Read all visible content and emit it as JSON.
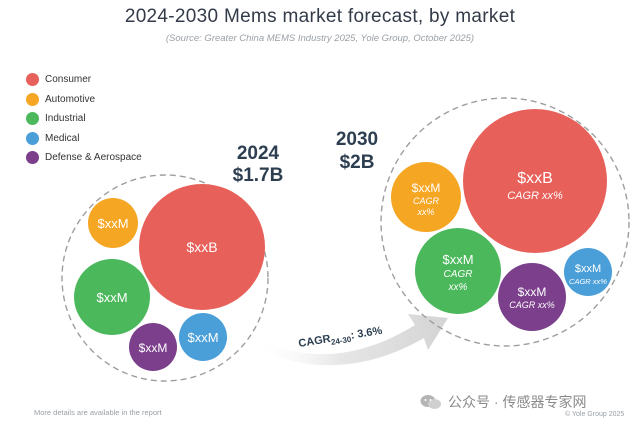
{
  "chart_data": {
    "type": "bubble",
    "title": "2024-2030 Mems market forecast, by market",
    "subtitle": "(Source: Greater China MEMS Industry 2025, Yole Group, October 2025)",
    "legend": [
      {
        "name": "Consumer",
        "color": "#E8605A"
      },
      {
        "name": "Automotive",
        "color": "#F5A623"
      },
      {
        "name": "Industrial",
        "color": "#4CB85C"
      },
      {
        "name": "Medical",
        "color": "#4A9FD8"
      },
      {
        "name": "Defense & Aerospace",
        "color": "#7B3F8C"
      }
    ],
    "years": [
      {
        "year": "2024",
        "total": "$1.7B",
        "segments": [
          {
            "segment": "Consumer",
            "value": "$xxB"
          },
          {
            "segment": "Automotive",
            "value": "$xxM"
          },
          {
            "segment": "Industrial",
            "value": "$xxM"
          },
          {
            "segment": "Defense & Aerospace",
            "value": "$xxM"
          },
          {
            "segment": "Medical",
            "value": "$xxM"
          }
        ]
      },
      {
        "year": "2030",
        "total": "$2B",
        "segments": [
          {
            "segment": "Consumer",
            "value": "$xxB",
            "cagr": "CAGR xx%"
          },
          {
            "segment": "Automotive",
            "value": "$xxM",
            "cagr_lines": [
              "CAGR",
              "xx%"
            ]
          },
          {
            "segment": "Industrial",
            "value": "$xxM",
            "cagr_lines": [
              "CAGR",
              "xx%"
            ]
          },
          {
            "segment": "Defense & Aerospace",
            "value": "$xxM",
            "cagr": "CAGR xx%"
          },
          {
            "segment": "Medical",
            "value": "$xxM",
            "cagr": "CAGR xx%"
          }
        ]
      }
    ],
    "overall_cagr": {
      "prefix": "CAGR",
      "subscript": "24-30",
      "suffix": ": 3.6%"
    }
  },
  "footnote": "More details are available in the report",
  "copyright": "© Yole Group 2025",
  "watermark": "公众号 · 传感器专家网"
}
